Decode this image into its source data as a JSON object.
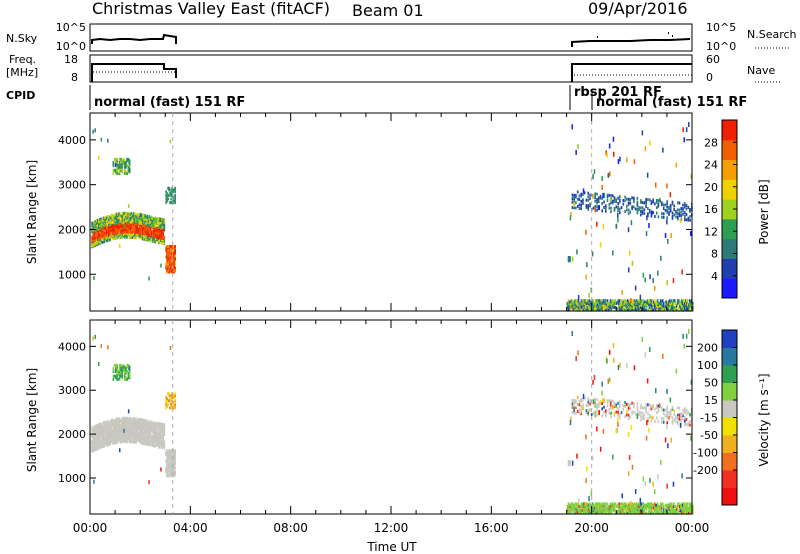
{
  "header": {
    "title": "Christmas Valley East (fitACF)",
    "beam": "Beam 01",
    "date": "09/Apr/2016"
  },
  "nsky_panel": {
    "left_label": "N.Sky",
    "left_ticks": [
      "10^5",
      "10^0"
    ],
    "right_ticks": [
      "10^5",
      "10^0"
    ],
    "right_label": "N.Search"
  },
  "freq_panel": {
    "left_label_1": "Freq.",
    "left_label_2": "[MHz]",
    "left_ticks": [
      "18",
      "8"
    ],
    "right_ticks": [
      "60",
      "0"
    ],
    "right_label": "Nave"
  },
  "cpid_panel": {
    "label": "CPID",
    "entries": [
      {
        "text": "normal (fast)  151 RF",
        "start_hour": 0
      },
      {
        "text": "rbsp  201  RF",
        "start_hour": 19.0
      },
      {
        "text": "normal (fast)  151 RF",
        "start_hour": 20.0
      }
    ]
  },
  "colors": {
    "power_scale": [
      "#1a1aff",
      "#2040b0",
      "#2e7a7a",
      "#2aa050",
      "#a0d020",
      "#f0d000",
      "#f5a000",
      "#f06000",
      "#ee2000"
    ],
    "velocity_scale": [
      "#ee1010",
      "#f03020",
      "#f07020",
      "#f0b020",
      "#f0e000",
      "#c8c8c0",
      "#80d040",
      "#30a050",
      "#2878a0",
      "#2040c0"
    ],
    "ground_scatter": "#c8c8c0"
  },
  "chart_data": [
    {
      "type": "heatmap",
      "title": "",
      "xlabel": "",
      "ylabel": "Slant Range [km]",
      "xlim": [
        "00:00",
        "24:00"
      ],
      "ylim": [
        180,
        4600
      ],
      "x_ticks": [
        "00:00",
        "04:00",
        "08:00",
        "12:00",
        "16:00",
        "20:00",
        "00:00"
      ],
      "y_ticks": [
        1000,
        2000,
        3000,
        4000
      ],
      "colorbar_label": "Power [dB]",
      "colorbar_ticks": [
        4,
        8,
        12,
        16,
        20,
        24,
        28
      ],
      "colorbar_range": [
        0,
        32
      ]
    },
    {
      "type": "heatmap",
      "title": "",
      "xlabel": "Time UT",
      "ylabel": "Slant Range [km]",
      "xlim": [
        "00:00",
        "24:00"
      ],
      "ylim": [
        180,
        4600
      ],
      "x_ticks": [
        "00:00",
        "04:00",
        "08:00",
        "12:00",
        "16:00",
        "20:00",
        "00:00"
      ],
      "y_ticks": [
        1000,
        2000,
        3000,
        4000
      ],
      "colorbar_label": "Velocity [m s⁻¹]",
      "colorbar_ticks": [
        200,
        100,
        50,
        15,
        -15,
        -50,
        -100,
        -200
      ]
    }
  ]
}
